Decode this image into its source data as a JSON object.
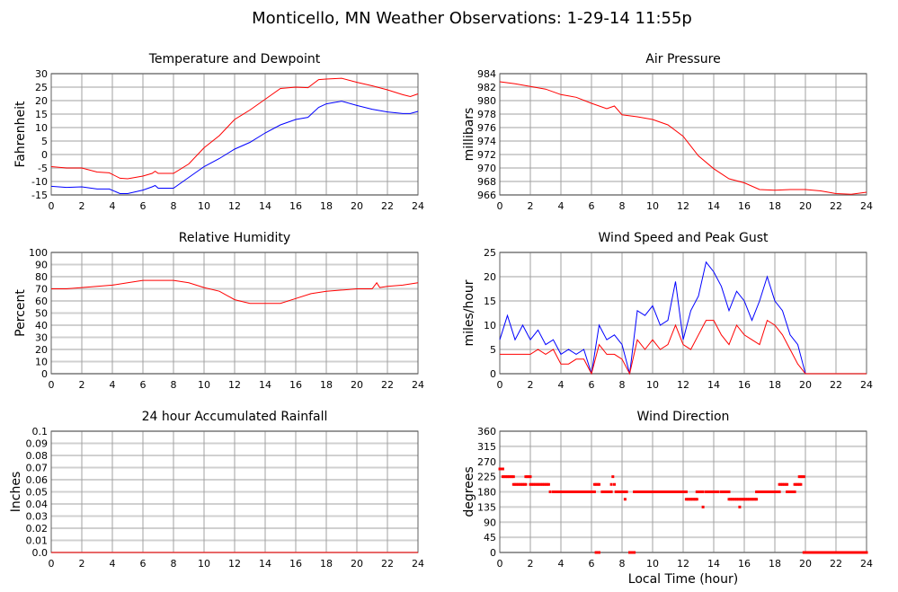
{
  "title": "Monticello, MN Weather Observations: 1-29-14 11:55p",
  "xlabel": "Local Time (hour)",
  "colors": {
    "red": "#ff0000",
    "blue": "#0000ff",
    "vgrid": "#a0a0a0",
    "hgrid": "#d0d0d0",
    "frame": "#606060"
  },
  "chart_data": [
    {
      "type": "line",
      "title": "Temperature and Dewpoint",
      "ylabel": "Fahrenheit",
      "xlim": [
        0,
        24
      ],
      "ylim": [
        -15,
        30
      ],
      "xticks": [
        0,
        2,
        4,
        6,
        8,
        10,
        12,
        14,
        16,
        18,
        20,
        22,
        24
      ],
      "yticks": [
        -15,
        -10,
        -5,
        0,
        5,
        10,
        15,
        20,
        25,
        30
      ],
      "x": [
        0,
        1,
        2,
        3,
        3.8,
        4.5,
        5,
        6,
        6.6,
        6.8,
        7,
        8,
        9,
        10,
        11,
        12,
        13,
        14,
        15,
        16,
        16.8,
        17.5,
        18,
        19,
        20,
        21,
        22,
        23,
        23.5,
        24
      ],
      "series": [
        {
          "name": "Temperature",
          "color": "#ff0000",
          "values": [
            -4.5,
            -5,
            -5,
            -6.5,
            -6.8,
            -8.8,
            -9,
            -8,
            -7,
            -6.2,
            -7,
            -7,
            -3.5,
            2.5,
            7,
            13,
            16.5,
            20.5,
            24.5,
            25,
            24.8,
            27.8,
            28,
            28.3,
            26.8,
            25.5,
            24,
            22.2,
            21.5,
            22.5
          ]
        },
        {
          "name": "Dewpoint",
          "color": "#0000ff",
          "values": [
            -11.8,
            -12.2,
            -12,
            -12.8,
            -12.8,
            -14.5,
            -14.5,
            -13.2,
            -12,
            -11.5,
            -12.5,
            -12.5,
            -8.5,
            -4.5,
            -1.5,
            2,
            4.5,
            8,
            11,
            13,
            13.8,
            17.5,
            18.8,
            19.8,
            18.2,
            16.8,
            15.8,
            15.2,
            15.2,
            16
          ]
        }
      ]
    },
    {
      "type": "line",
      "title": "Air Pressure",
      "ylabel": "millibars",
      "xlim": [
        0,
        24
      ],
      "ylim": [
        966,
        984
      ],
      "xticks": [
        0,
        2,
        4,
        6,
        8,
        10,
        12,
        14,
        16,
        18,
        20,
        22,
        24
      ],
      "yticks": [
        966,
        968,
        970,
        972,
        974,
        976,
        978,
        980,
        982,
        984
      ],
      "x": [
        0,
        1,
        2,
        3,
        4,
        5,
        6,
        7,
        7.5,
        8,
        9,
        10,
        11,
        12,
        13,
        14,
        15,
        16,
        17,
        18,
        19,
        20,
        21,
        22,
        23,
        24
      ],
      "series": [
        {
          "name": "Pressure",
          "color": "#ff0000",
          "values": [
            982.8,
            982.5,
            982.1,
            981.7,
            980.9,
            980.5,
            979.6,
            978.8,
            979.2,
            977.9,
            977.6,
            977.2,
            976.4,
            974.7,
            971.8,
            969.9,
            968.4,
            967.8,
            966.8,
            966.7,
            966.8,
            966.8,
            966.6,
            966.2,
            966.1,
            966.4
          ]
        }
      ]
    },
    {
      "type": "line",
      "title": "Relative Humidity",
      "ylabel": "Percent",
      "xlim": [
        0,
        24
      ],
      "ylim": [
        0,
        100
      ],
      "xticks": [
        0,
        2,
        4,
        6,
        8,
        10,
        12,
        14,
        16,
        18,
        20,
        22,
        24
      ],
      "yticks": [
        0,
        10,
        20,
        30,
        40,
        50,
        60,
        70,
        80,
        90,
        100
      ],
      "x": [
        0,
        1,
        2,
        3,
        4,
        5,
        6,
        7,
        8,
        9,
        10,
        11,
        12,
        13,
        14,
        15,
        16,
        17,
        18,
        19,
        20,
        21,
        21.3,
        21.5,
        22,
        23,
        24
      ],
      "series": [
        {
          "name": "Relative Humidity",
          "color": "#ff0000",
          "values": [
            70,
            70,
            71,
            72,
            73,
            75,
            77,
            77,
            77,
            75,
            71,
            68,
            61,
            58,
            58,
            58,
            62,
            66,
            68,
            69,
            70,
            70,
            75,
            71,
            72,
            73,
            75
          ]
        }
      ]
    },
    {
      "type": "line",
      "title": "Wind Speed and Peak Gust",
      "ylabel": "miles/hour",
      "xlim": [
        0,
        24
      ],
      "ylim": [
        0,
        25
      ],
      "xticks": [
        0,
        2,
        4,
        6,
        8,
        10,
        12,
        14,
        16,
        18,
        20,
        22,
        24
      ],
      "yticks": [
        0,
        5,
        10,
        15,
        20,
        25
      ],
      "x": [
        0,
        0.5,
        1,
        1.5,
        2,
        2.5,
        3,
        3.5,
        4,
        4.5,
        5,
        5.5,
        6,
        6.5,
        7,
        7.5,
        8,
        8.5,
        9,
        9.5,
        10,
        10.5,
        11,
        11.5,
        12,
        12.5,
        13,
        13.5,
        14,
        14.5,
        15,
        15.5,
        16,
        16.5,
        17,
        17.5,
        18,
        18.5,
        19,
        19.5,
        20,
        21,
        22,
        23,
        24
      ],
      "series": [
        {
          "name": "Peak Gust",
          "color": "#0000ff",
          "values": [
            7,
            12,
            7,
            10,
            7,
            9,
            6,
            7,
            4,
            5,
            4,
            5,
            0,
            10,
            7,
            8,
            6,
            0,
            13,
            12,
            14,
            10,
            11,
            19,
            7,
            13,
            16,
            23,
            21,
            18,
            13,
            17,
            15,
            11,
            15,
            20,
            15,
            13,
            8,
            6,
            0,
            0,
            0,
            0,
            0
          ]
        },
        {
          "name": "Wind Speed",
          "color": "#ff0000",
          "values": [
            4,
            4,
            4,
            4,
            4,
            5,
            4,
            5,
            2,
            2,
            3,
            3,
            0,
            6,
            4,
            4,
            3,
            0,
            7,
            5,
            7,
            5,
            6,
            10,
            6,
            5,
            8,
            11,
            11,
            8,
            6,
            10,
            8,
            7,
            6,
            11,
            10,
            8,
            5,
            2,
            0,
            0,
            0,
            0,
            0
          ]
        }
      ]
    },
    {
      "type": "line",
      "title": "24 hour Accumulated Rainfall",
      "ylabel": "Inches",
      "xlim": [
        0,
        24
      ],
      "ylim": [
        0,
        0.1
      ],
      "xticks": [
        0,
        2,
        4,
        6,
        8,
        10,
        12,
        14,
        16,
        18,
        20,
        22,
        24
      ],
      "yticks": [
        "0.0",
        "0.01",
        "0.02",
        "0.03",
        "0.04",
        "0.05",
        "0.06",
        "0.07",
        "0.08",
        "0.09",
        "0.1"
      ],
      "x": [
        0,
        24
      ],
      "series": [
        {
          "name": "Rainfall",
          "color": "#ff0000",
          "values": [
            0,
            0
          ]
        }
      ]
    },
    {
      "type": "scatter",
      "title": "Wind Direction",
      "ylabel": "degrees",
      "xlim": [
        0,
        24
      ],
      "ylim": [
        0,
        360
      ],
      "xticks": [
        0,
        2,
        4,
        6,
        8,
        10,
        12,
        14,
        16,
        18,
        20,
        22,
        24
      ],
      "yticks": [
        0,
        45,
        90,
        135,
        180,
        225,
        270,
        315,
        360
      ],
      "segments": [
        [
          0,
          0.2,
          248
        ],
        [
          0.2,
          0.9,
          225
        ],
        [
          0.9,
          1.7,
          202
        ],
        [
          1.7,
          2,
          225
        ],
        [
          2,
          3.2,
          202
        ],
        [
          3.3,
          3.3,
          180
        ],
        [
          3.5,
          6.2,
          180
        ],
        [
          6.2,
          6.5,
          202
        ],
        [
          6.3,
          6.5,
          0
        ],
        [
          6.7,
          7.3,
          180
        ],
        [
          7.3,
          7.3,
          202
        ],
        [
          7.4,
          7.4,
          225
        ],
        [
          7.5,
          7.5,
          202
        ],
        [
          7.6,
          8.3,
          180
        ],
        [
          8.2,
          8.2,
          158
        ],
        [
          8.5,
          8.8,
          0
        ],
        [
          8.8,
          12.2,
          180
        ],
        [
          12.2,
          12.9,
          158
        ],
        [
          12.9,
          13.3,
          180
        ],
        [
          13.3,
          13.3,
          135
        ],
        [
          13.5,
          14.3,
          180
        ],
        [
          14.5,
          15,
          180
        ],
        [
          15,
          16.8,
          158
        ],
        [
          15.7,
          15.7,
          135
        ],
        [
          16.8,
          18.3,
          180
        ],
        [
          18.3,
          18.8,
          202
        ],
        [
          18.8,
          19.3,
          180
        ],
        [
          19.3,
          19.7,
          202
        ],
        [
          19.6,
          19.9,
          225
        ],
        [
          19.9,
          24,
          0
        ]
      ],
      "color": "#ff0000"
    }
  ]
}
